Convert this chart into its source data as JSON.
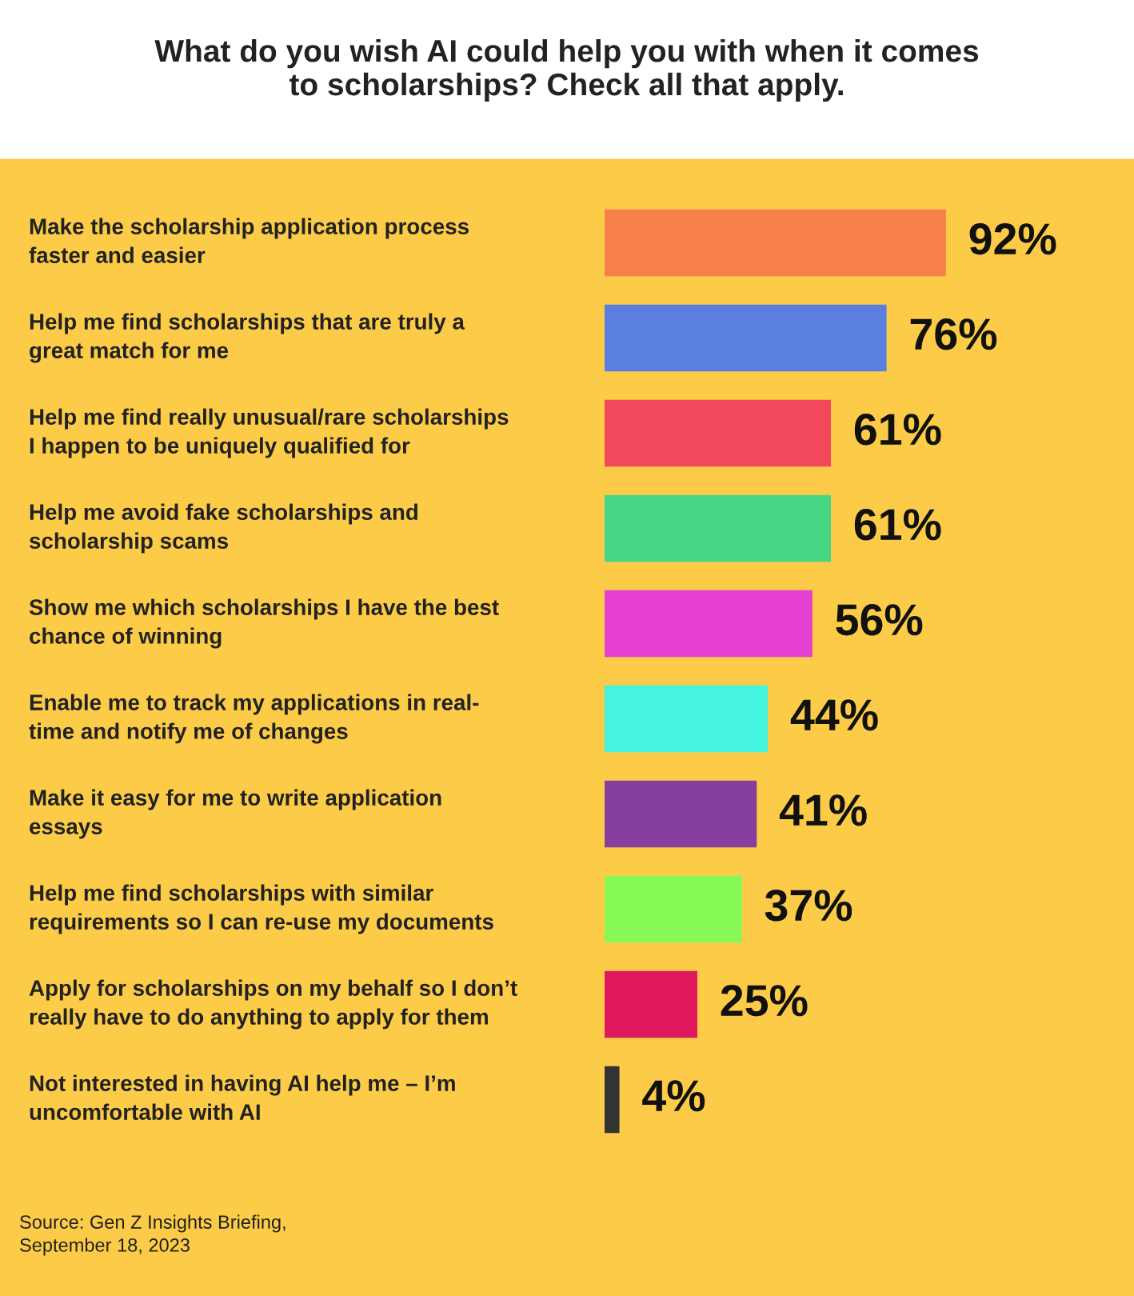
{
  "chart_data": {
    "type": "bar",
    "orientation": "horizontal",
    "title": "What do you wish AI could help you with when it comes\nto scholarships? Check all that apply.",
    "categories": [
      "Make the scholarship application process\nfaster and easier",
      "Help me find scholarships that are truly a\ngreat match for me",
      "Help me find really unusual/rare scholarships\nI happen to be uniquely qualified for",
      "Help me avoid fake scholarships and\nscholarship scams",
      "Show me which scholarships I have the best\nchance of winning",
      "Enable me to track my applications in real-\ntime and notify me of changes",
      "Make it easy for me to write application\nessays",
      "Help me find scholarships with similar\nrequirements so I can re-use my documents",
      "Apply for scholarships on my behalf so I don’t\nreally have to do anything to apply for them",
      "Not interested in having AI help me – I’m\nuncomfortable with AI"
    ],
    "values": [
      92,
      76,
      61,
      61,
      56,
      44,
      41,
      37,
      25,
      4
    ],
    "colors": [
      "#f77f4a",
      "#5a7fe0",
      "#f2485b",
      "#47d685",
      "#e63fd4",
      "#44f4e0",
      "#873f9e",
      "#86f956",
      "#e0195f",
      "#333333"
    ],
    "value_labels": [
      "92%",
      "76%",
      "61%",
      "61%",
      "56%",
      "44%",
      "41%",
      "37%",
      "25%",
      "4%"
    ],
    "tick_labels": false,
    "annotations": [
      "Source: Gen Z Insights Briefing,\nSeptember 18, 2023"
    ]
  }
}
